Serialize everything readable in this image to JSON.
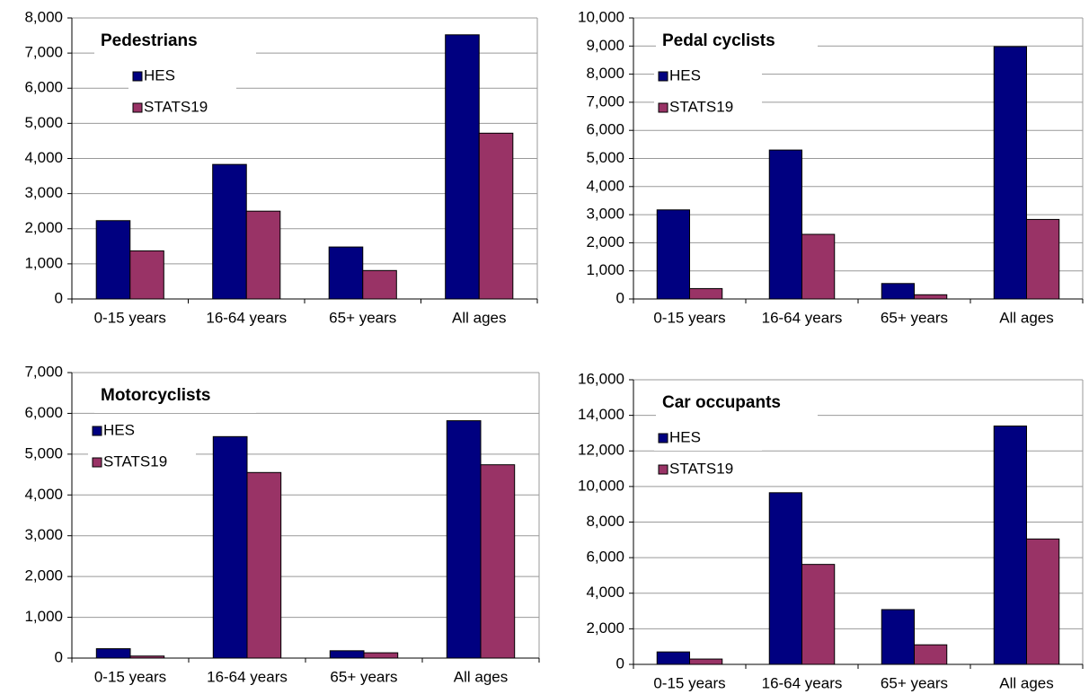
{
  "chart_data": [
    {
      "type": "bar",
      "title": "Pedestrians",
      "categories": [
        "0-15 years",
        "16-64 years",
        "65+ years",
        "All ages"
      ],
      "series": [
        {
          "name": "HES",
          "color": "#000080",
          "values": [
            2230,
            3830,
            1480,
            7520
          ]
        },
        {
          "name": "STATS19",
          "color": "#993366",
          "values": [
            1370,
            2500,
            810,
            4720
          ]
        }
      ],
      "ylim": [
        0,
        8000
      ],
      "yticks": [
        0,
        {
          "value": 1000,
          "label": "1,000"
        },
        {
          "value": 2000,
          "label": "2,000"
        },
        {
          "value": 3000,
          "label": "3,000"
        },
        {
          "value": 4000,
          "label": "4,000"
        },
        {
          "value": 5000,
          "label": "5,000"
        },
        {
          "value": 6000,
          "label": "6,000"
        },
        {
          "value": 7000,
          "label": "7,000"
        },
        {
          "value": 8000,
          "label": "8,000"
        }
      ],
      "grid": true
    },
    {
      "type": "bar",
      "title": "Pedal cyclists",
      "categories": [
        "0-15 years",
        "16-64 years",
        "65+ years",
        "All ages"
      ],
      "series": [
        {
          "name": "HES",
          "color": "#000080",
          "values": [
            3170,
            5300,
            550,
            8980
          ]
        },
        {
          "name": "STATS19",
          "color": "#993366",
          "values": [
            370,
            2300,
            150,
            2830
          ]
        }
      ],
      "ylim": [
        0,
        10000
      ],
      "yticks": [
        0,
        {
          "value": 1000,
          "label": "1,000"
        },
        {
          "value": 2000,
          "label": "2,000"
        },
        {
          "value": 3000,
          "label": "3,000"
        },
        {
          "value": 4000,
          "label": "4,000"
        },
        {
          "value": 5000,
          "label": "5,000"
        },
        {
          "value": 6000,
          "label": "6,000"
        },
        {
          "value": 7000,
          "label": "7,000"
        },
        {
          "value": 8000,
          "label": "8,000"
        },
        {
          "value": 9000,
          "label": "9,000"
        },
        {
          "value": 10000,
          "label": "10,000"
        }
      ],
      "grid": true
    },
    {
      "type": "bar",
      "title": "Motorcyclists",
      "categories": [
        "0-15 years",
        "16-64 years",
        "65+ years",
        "All ages"
      ],
      "series": [
        {
          "name": "HES",
          "color": "#000080",
          "values": [
            230,
            5430,
            180,
            5820
          ]
        },
        {
          "name": "STATS19",
          "color": "#993366",
          "values": [
            50,
            4550,
            130,
            4740
          ]
        }
      ],
      "ylim": [
        0,
        7000
      ],
      "yticks": [
        0,
        {
          "value": 1000,
          "label": "1,000"
        },
        {
          "value": 2000,
          "label": "2,000"
        },
        {
          "value": 3000,
          "label": "3,000"
        },
        {
          "value": 4000,
          "label": "4,000"
        },
        {
          "value": 5000,
          "label": "5,000"
        },
        {
          "value": 6000,
          "label": "6,000"
        },
        {
          "value": 7000,
          "label": "7,000"
        }
      ],
      "grid": true
    },
    {
      "type": "bar",
      "title": "Car occupants",
      "categories": [
        "0-15 years",
        "16-64 years",
        "65+ years",
        "All ages"
      ],
      "series": [
        {
          "name": "HES",
          "color": "#000080",
          "values": [
            700,
            9650,
            3080,
            13400
          ]
        },
        {
          "name": "STATS19",
          "color": "#993366",
          "values": [
            300,
            5620,
            1100,
            7050
          ]
        }
      ],
      "ylim": [
        0,
        16000
      ],
      "yticks": [
        0,
        {
          "value": 2000,
          "label": "2,000"
        },
        {
          "value": 4000,
          "label": "4,000"
        },
        {
          "value": 6000,
          "label": "6,000"
        },
        {
          "value": 8000,
          "label": "8,000"
        },
        {
          "value": 10000,
          "label": "10,000"
        },
        {
          "value": 12000,
          "label": "12,000"
        },
        {
          "value": 14000,
          "label": "14,000"
        },
        {
          "value": 16000,
          "label": "16,000"
        }
      ],
      "grid": true
    }
  ]
}
